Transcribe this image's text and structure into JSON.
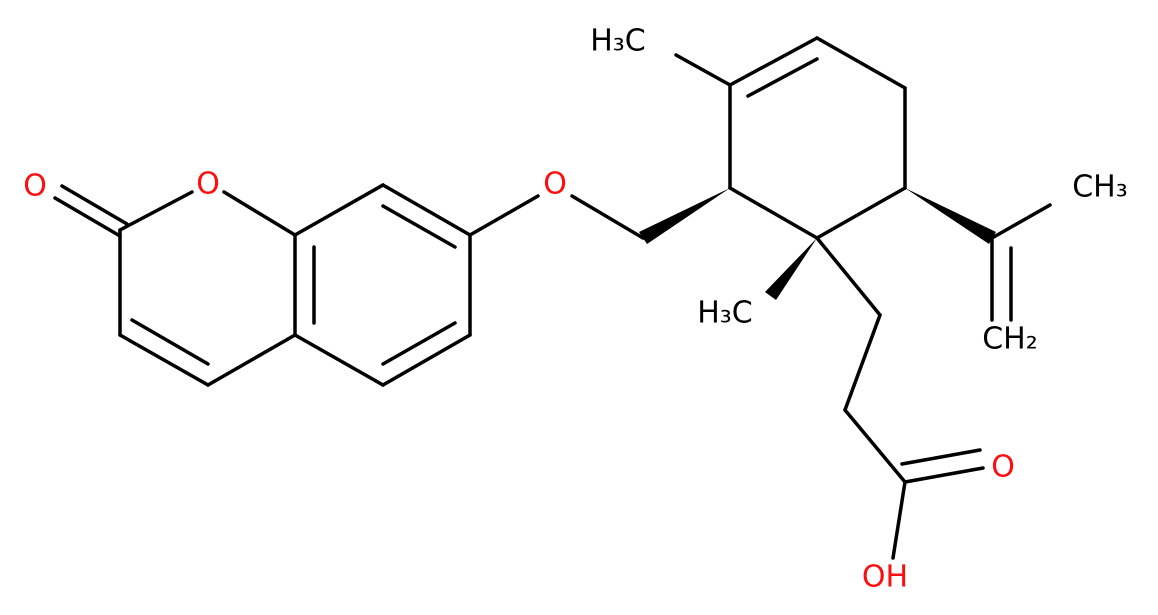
{
  "labels": {
    "carbonyl_oxygen": "O",
    "ring_oxygen": "O",
    "ether_oxygen": "O",
    "methyl_top": "H₃C",
    "methyl_right": "CH₃",
    "methyl_bottom": "H₃C",
    "methylene": "CH₂",
    "acid_oxygen": "O",
    "hydroxyl": "OH"
  }
}
